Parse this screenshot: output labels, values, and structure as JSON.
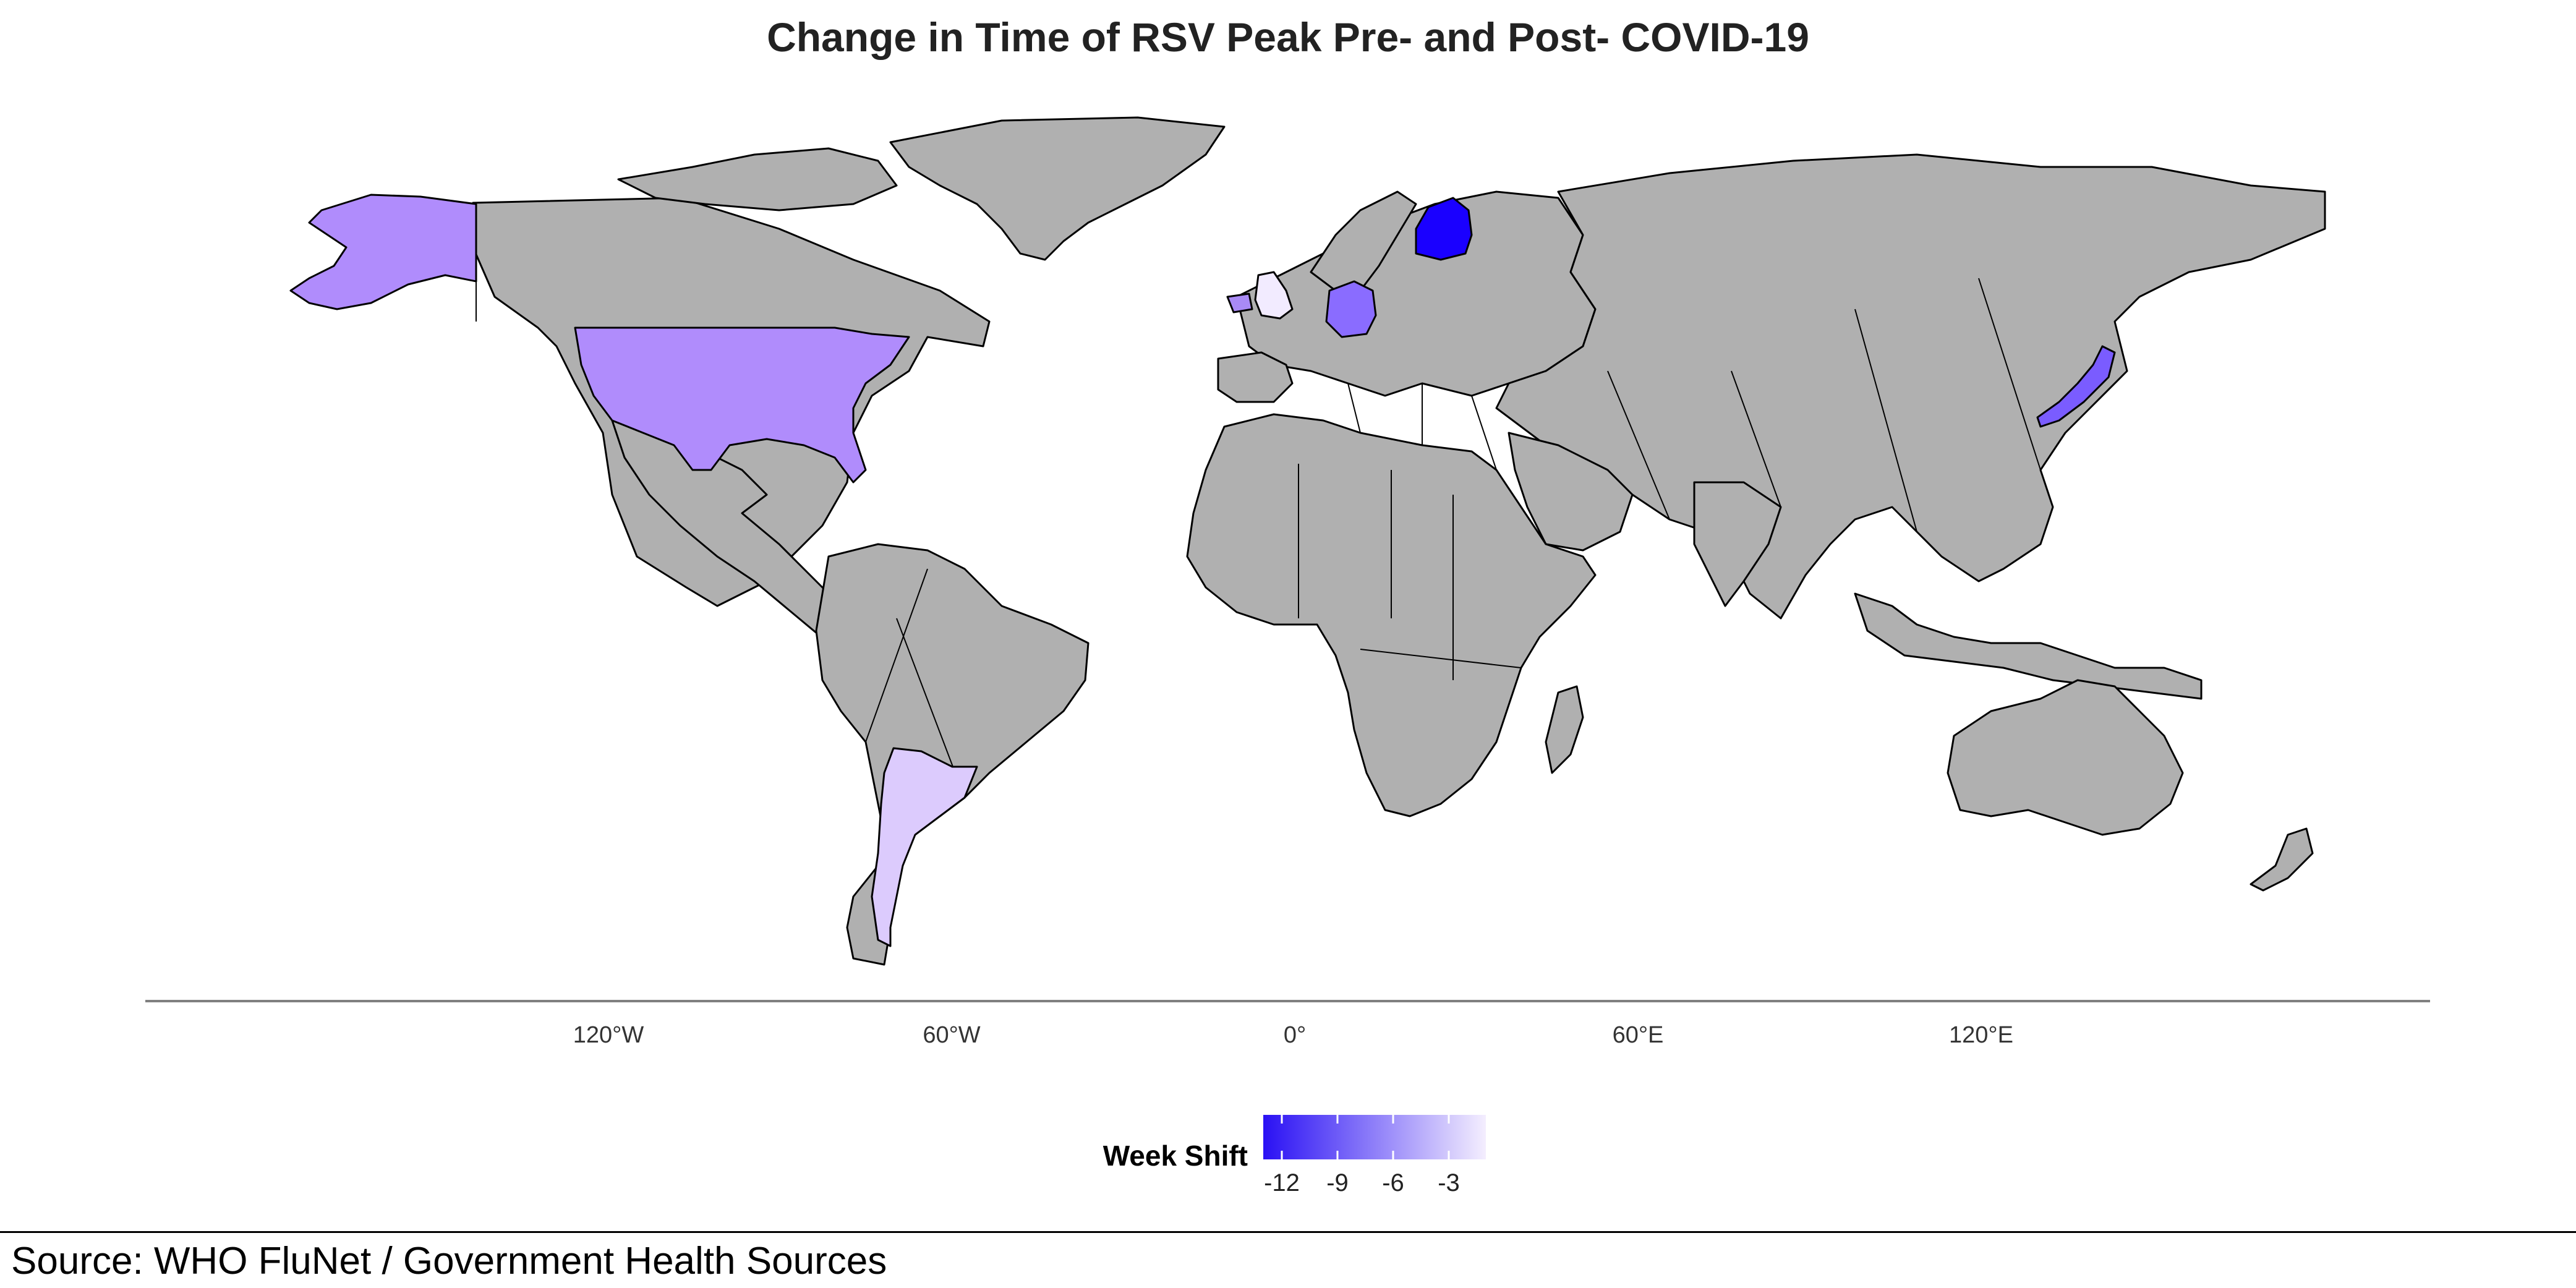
{
  "title": "Change in Time of RSV Peak Pre- and Post- COVID-19",
  "source": "Source: WHO FluNet / Government Health Sources",
  "axis": {
    "ticks": [
      "120°W",
      "60°W",
      "0°",
      "60°E",
      "120°E"
    ],
    "tick_longitudes": [
      -120,
      -60,
      0,
      60,
      120
    ]
  },
  "legend": {
    "title": "Week Shift",
    "tick_labels": [
      "-12",
      "-9",
      "-6",
      "-3"
    ],
    "tick_values": [
      -12,
      -9,
      -6,
      -3
    ],
    "range": [
      -13,
      -1
    ],
    "color_low": "#2a11f4",
    "color_high": "#f4eefe"
  },
  "colors": {
    "land": "#b0b0b0",
    "border": "#000000",
    "no_data": "#b0b0b0"
  },
  "chart_data": {
    "type": "choropleth",
    "title": "Change in Time of RSV Peak Pre- and Post- COVID-19",
    "value_label": "Week Shift",
    "regions": [
      {
        "name": "Finland",
        "value": -13,
        "color": "#1a00ff"
      },
      {
        "name": "Japan",
        "value": -9,
        "color": "#7a5cff"
      },
      {
        "name": "Germany",
        "value": -8,
        "color": "#8a6cff"
      },
      {
        "name": "Ireland",
        "value": -7,
        "color": "#a98af5"
      },
      {
        "name": "United States",
        "value": -6,
        "color": "#b08cfc"
      },
      {
        "name": "Argentina",
        "value": -3,
        "color": "#dccbfd"
      },
      {
        "name": "United Kingdom",
        "value": -1,
        "color": "#f2ebff"
      }
    ]
  }
}
